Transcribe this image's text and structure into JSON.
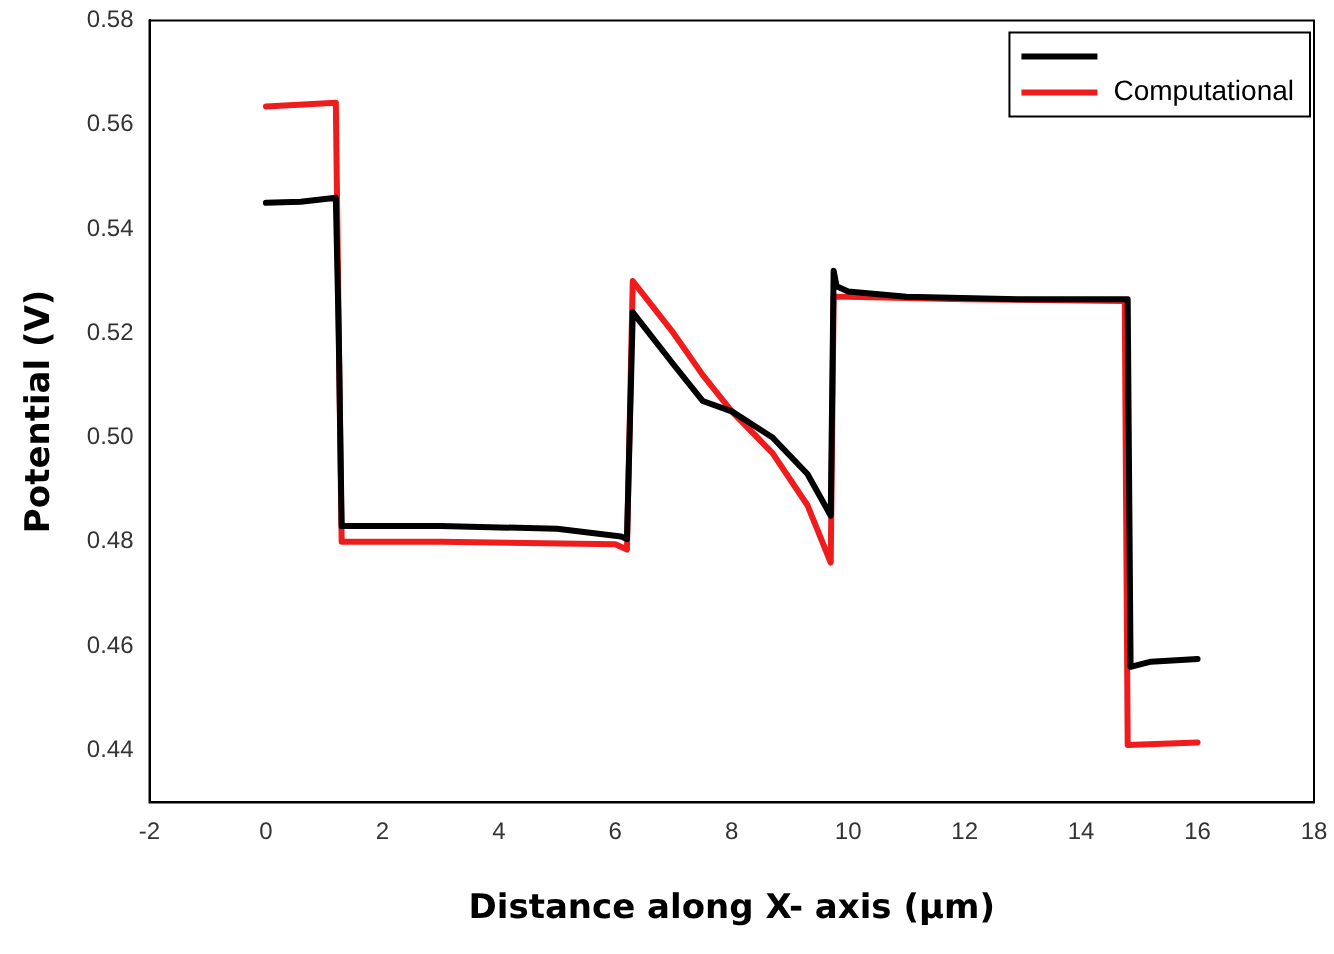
{
  "chart_data": {
    "type": "line",
    "xlabel": "Distance along X- axis (µm)",
    "ylabel": "Potential (V)",
    "xlim": [
      -2,
      18
    ],
    "xticks": [
      -2,
      0,
      2,
      4,
      6,
      8,
      10,
      12,
      14,
      16,
      18
    ],
    "ylim": [
      0.43,
      0.58
    ],
    "yticks": [
      0.44,
      0.46,
      0.48,
      {
        "value": 0.5,
        "label": "0.50"
      },
      0.52,
      0.54,
      0.56,
      0.58
    ],
    "grid": false,
    "legend": "top right",
    "marker": "none",
    "line_style": "solid",
    "series": [
      {
        "color": "#000000",
        "x": [
          0,
          0.6,
          1.2,
          1.25,
          1.3,
          3,
          5,
          6.1,
          6.2,
          6.3,
          7,
          7.5,
          8,
          8.7,
          9.3,
          9.7,
          9.75,
          9.8,
          10,
          11,
          13,
          14.8,
          14.85,
          15.2,
          16
        ],
        "values": [
          0.545,
          0.5452,
          0.546,
          0.52,
          0.483,
          0.483,
          0.4825,
          0.481,
          0.4805,
          0.524,
          0.514,
          0.507,
          0.505,
          0.5,
          0.493,
          0.485,
          0.532,
          0.529,
          0.528,
          0.527,
          0.5265,
          0.5265,
          0.456,
          0.457,
          0.4575
        ]
      },
      {
        "name": "Computational",
        "color": "#ee1c1c",
        "x": [
          0,
          1.2,
          1.25,
          1.3,
          3,
          6,
          6.2,
          6.3,
          7,
          7.5,
          8,
          8.7,
          9.3,
          9.7,
          9.75,
          10,
          12,
          14.75,
          14.8,
          16
        ],
        "values": [
          0.5635,
          0.5642,
          0.52,
          0.48,
          0.48,
          0.4795,
          0.4785,
          0.53,
          0.52,
          0.512,
          0.505,
          0.497,
          0.487,
          0.476,
          0.527,
          0.527,
          0.5265,
          0.5262,
          0.441,
          0.4415
        ]
      }
    ]
  }
}
